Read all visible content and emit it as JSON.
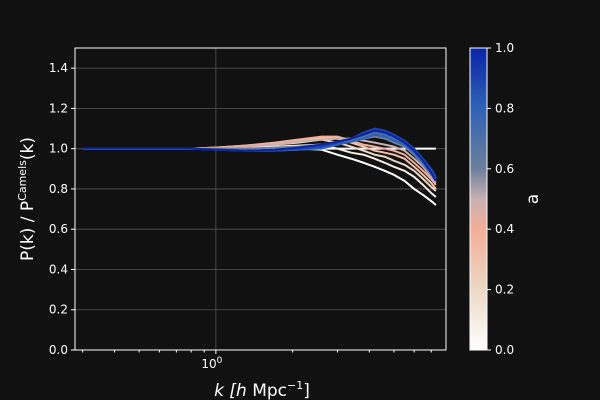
{
  "chart_data": {
    "type": "line",
    "x_scale": "log",
    "xlim": [
      0.28,
      8.0
    ],
    "ylim": [
      0.0,
      1.5
    ],
    "grid": true,
    "xlabel": {
      "main": "k [",
      "italic": "h",
      "tail": " Mpc",
      "sup": "−1",
      "close": "]"
    },
    "ylabel": {
      "main": "P(k) / P",
      "sup": "Camels",
      "tail": "(k)"
    },
    "x_ticks": [
      {
        "value": 1.0,
        "label": "10",
        "sup": "0"
      }
    ],
    "y_ticks": [
      {
        "value": 0.0,
        "label": "0.0"
      },
      {
        "value": 0.2,
        "label": "0.2"
      },
      {
        "value": 0.4,
        "label": "0.4"
      },
      {
        "value": 0.6,
        "label": "0.6"
      },
      {
        "value": 0.8,
        "label": "0.8"
      },
      {
        "value": 1.0,
        "label": "1.0"
      },
      {
        "value": 1.2,
        "label": "1.2"
      },
      {
        "value": 1.4,
        "label": "1.4"
      }
    ],
    "reference_line": {
      "y": 1.0,
      "x_range": [
        0.3,
        7.3
      ],
      "color": "#ffffff"
    },
    "x": [
      0.3,
      0.5,
      0.8,
      1.0,
      1.3,
      1.7,
      2.1,
      2.6,
      3.0,
      3.4,
      3.8,
      4.2,
      4.6,
      5.0,
      5.5,
      6.0,
      6.5,
      7.0,
      7.3
    ],
    "series": [
      {
        "a": 0.0,
        "values": [
          1.0,
          1.0,
          1.0,
          1.0,
          1.0,
          1.0,
          1.0,
          0.995,
          0.97,
          0.95,
          0.93,
          0.91,
          0.89,
          0.87,
          0.84,
          0.8,
          0.77,
          0.74,
          0.72
        ]
      },
      {
        "a": 0.1,
        "values": [
          1.0,
          1.0,
          1.0,
          1.0,
          1.005,
          1.01,
          1.015,
          1.02,
          1.0,
          0.98,
          0.97,
          0.95,
          0.93,
          0.91,
          0.89,
          0.86,
          0.82,
          0.78,
          0.76
        ]
      },
      {
        "a": 0.2,
        "values": [
          1.0,
          1.0,
          1.0,
          1.005,
          1.01,
          1.02,
          1.03,
          1.045,
          1.03,
          1.01,
          0.99,
          0.97,
          0.96,
          0.94,
          0.92,
          0.89,
          0.85,
          0.81,
          0.79
        ]
      },
      {
        "a": 0.3,
        "values": [
          1.0,
          1.0,
          1.0,
          1.005,
          1.015,
          1.025,
          1.04,
          1.055,
          1.05,
          1.03,
          1.01,
          0.99,
          0.98,
          0.97,
          0.95,
          0.91,
          0.87,
          0.83,
          0.8
        ]
      },
      {
        "a": 0.4,
        "values": [
          1.0,
          1.0,
          1.0,
          1.005,
          1.015,
          1.03,
          1.045,
          1.06,
          1.06,
          1.04,
          1.02,
          1.01,
          1.0,
          0.99,
          0.97,
          0.93,
          0.89,
          0.85,
          0.82
        ]
      },
      {
        "a": 0.5,
        "values": [
          1.0,
          1.0,
          1.0,
          1.0,
          1.01,
          1.02,
          1.035,
          1.045,
          1.05,
          1.05,
          1.04,
          1.03,
          1.02,
          1.01,
          0.99,
          0.95,
          0.91,
          0.86,
          0.83
        ]
      },
      {
        "a": 0.6,
        "values": [
          1.0,
          1.0,
          1.0,
          1.0,
          1.0,
          1.005,
          1.01,
          1.02,
          1.03,
          1.04,
          1.05,
          1.06,
          1.05,
          1.03,
          1.01,
          0.97,
          0.92,
          0.87,
          0.84
        ]
      },
      {
        "a": 0.7,
        "values": [
          1.0,
          1.0,
          1.0,
          0.995,
          0.99,
          0.99,
          0.995,
          1.0,
          1.02,
          1.04,
          1.06,
          1.08,
          1.07,
          1.05,
          1.03,
          0.99,
          0.94,
          0.89,
          0.85
        ]
      },
      {
        "a": 0.8,
        "values": [
          1.0,
          1.0,
          1.0,
          0.995,
          0.99,
          0.99,
          0.995,
          1.005,
          1.02,
          1.035,
          1.05,
          1.07,
          1.06,
          1.04,
          1.02,
          0.98,
          0.93,
          0.88,
          0.84
        ]
      },
      {
        "a": 0.9,
        "values": [
          1.0,
          1.0,
          1.0,
          0.995,
          0.99,
          0.99,
          1.0,
          1.01,
          1.03,
          1.05,
          1.08,
          1.1,
          1.09,
          1.07,
          1.04,
          1.0,
          0.95,
          0.9,
          0.86
        ]
      },
      {
        "a": 1.0,
        "values": [
          1.0,
          1.0,
          1.0,
          0.995,
          0.99,
          0.995,
          1.005,
          1.02,
          1.035,
          1.05,
          1.07,
          1.09,
          1.08,
          1.06,
          1.03,
          0.99,
          0.94,
          0.88,
          0.84
        ]
      }
    ],
    "colorbar": {
      "label": "a",
      "range": [
        0.0,
        1.0
      ],
      "ticks": [
        {
          "value": 0.0,
          "label": "0.0"
        },
        {
          "value": 0.2,
          "label": "0.2"
        },
        {
          "value": 0.4,
          "label": "0.4"
        },
        {
          "value": 0.6,
          "label": "0.6"
        },
        {
          "value": 0.8,
          "label": "0.8"
        },
        {
          "value": 1.0,
          "label": "1.0"
        }
      ],
      "colormap_stops": [
        {
          "value": 0.0,
          "color": "#ffffff"
        },
        {
          "value": 0.2,
          "color": "#ecd8c6"
        },
        {
          "value": 0.4,
          "color": "#f3ae98"
        },
        {
          "value": 0.5,
          "color": "#c8b1b3"
        },
        {
          "value": 0.6,
          "color": "#6d7f9c"
        },
        {
          "value": 0.8,
          "color": "#2f62b6"
        },
        {
          "value": 1.0,
          "color": "#0a24a6"
        }
      ]
    },
    "colors": {
      "background": "#111111",
      "grid": "#555555",
      "axes": "#ffffff"
    }
  }
}
